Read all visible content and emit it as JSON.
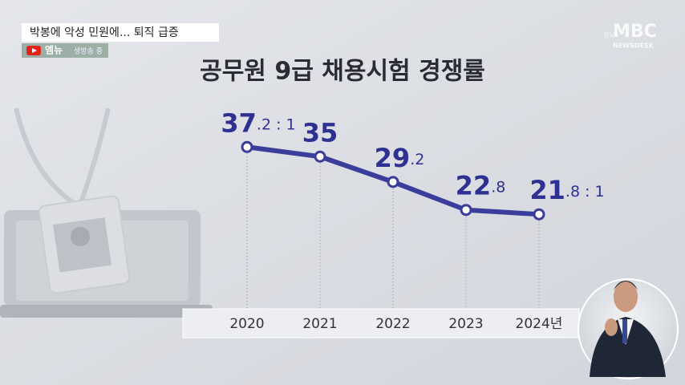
{
  "header": {
    "headline": "박봉에 악성 민원에... 퇴직 급증",
    "badge": "엠뉴",
    "live": "생방송 중",
    "region": "경남",
    "logo": "MBC",
    "logo_sub": "NEWSDESK"
  },
  "chart_data": {
    "type": "line",
    "title": "공무원 9급 채용시험 경쟁률",
    "categories": [
      "2020",
      "2021",
      "2022",
      "2023",
      "2024년"
    ],
    "values": [
      37.2,
      35,
      29.2,
      22.8,
      21.8
    ],
    "value_labels": [
      "37.2 : 1",
      "35",
      "29.2",
      "22.8",
      "21.8 : 1"
    ],
    "color": "#3b3d9a"
  }
}
